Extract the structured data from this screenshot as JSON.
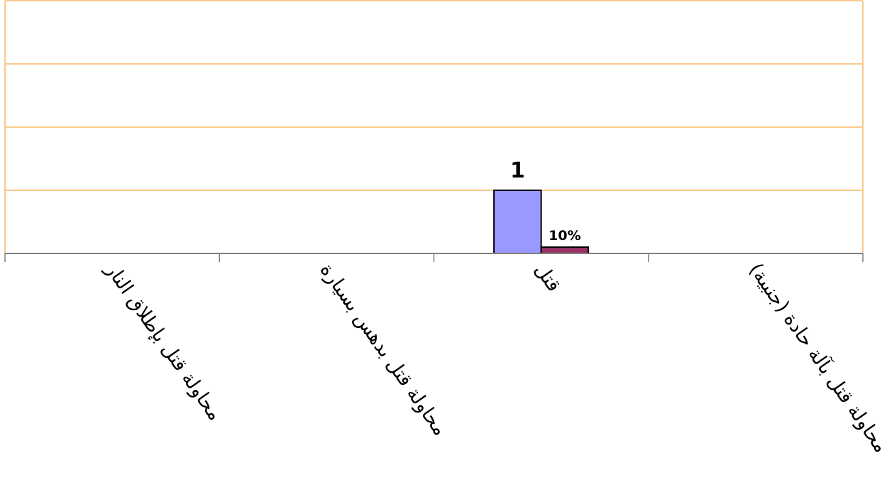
{
  "chart_data": {
    "type": "bar",
    "categories": [
      "محاولة قتل بإطلاق النار",
      "محاولة قتل بدهس بسيارة",
      "قتل",
      "محاولة قتل بآلة حادة (جنبية)"
    ],
    "series": [
      {
        "values": [
          0,
          0,
          1,
          0
        ],
        "labels": [
          "",
          "",
          "1",
          ""
        ]
      },
      {
        "values": [
          0,
          0,
          0.1,
          0
        ],
        "labels": [
          "",
          "",
          "10%",
          ""
        ]
      }
    ],
    "ylim": [
      0,
      4
    ],
    "grid": true,
    "legend": "none",
    "colors": {
      "series": [
        "#9999ff",
        "#993366"
      ],
      "gridline": "#f9c98e",
      "plot_border": "#f9c98e",
      "axis": "#7f7f7f",
      "bar_edge": "#000000"
    }
  }
}
